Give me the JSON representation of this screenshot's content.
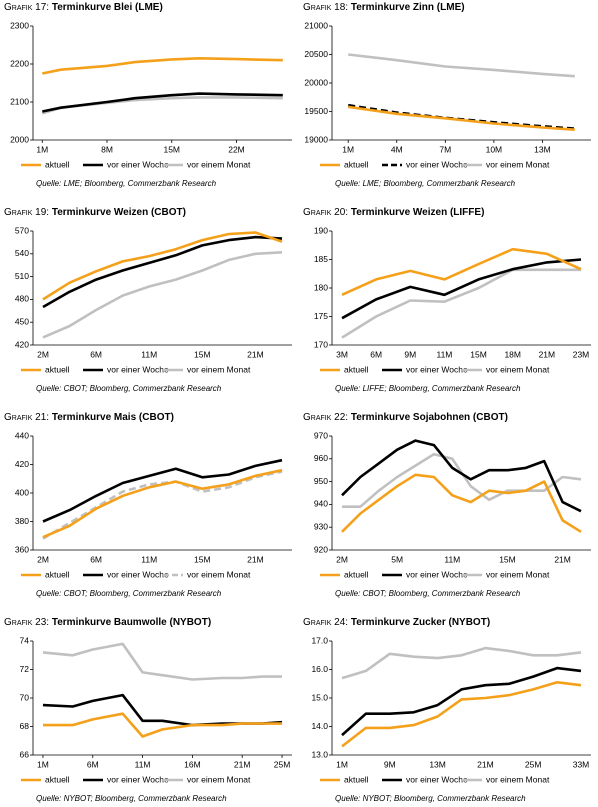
{
  "chart_data": [
    {
      "type": "line",
      "label": "Grafik 17:",
      "title": "Terminkurve Blei (LME)",
      "source": "Quelle: LME; Bloomberg, Commerzbank Research",
      "x": [
        1,
        3,
        8,
        11,
        15,
        18,
        22,
        27
      ],
      "xlim": [
        0,
        28
      ],
      "xticks": [
        {
          "value": 1,
          "label": "1M"
        },
        {
          "value": 8,
          "label": "8M"
        },
        {
          "value": 15,
          "label": "15M"
        },
        {
          "value": 22,
          "label": "22M"
        }
      ],
      "ylim": [
        2000,
        2300
      ],
      "yticks": [
        2000,
        2100,
        2200,
        2300
      ],
      "series": [
        {
          "name": "aktuell",
          "color": "#f5a01a",
          "values": [
            2175,
            2185,
            2195,
            2205,
            2212,
            2215,
            2213,
            2210
          ]
        },
        {
          "name": "vor einer Woche",
          "color": "#000000",
          "values": [
            2075,
            2085,
            2100,
            2110,
            2118,
            2122,
            2120,
            2118
          ]
        },
        {
          "name": "vor einem Monat",
          "color": "#c0c0c0",
          "values": [
            2070,
            2085,
            2098,
            2105,
            2110,
            2112,
            2112,
            2110
          ]
        }
      ]
    },
    {
      "type": "line",
      "label": "Grafik 18:",
      "title": "Terminkurve Zinn (LME)",
      "source": "Quelle: LME; Bloomberg, Commerzbank Research",
      "x": [
        1,
        4,
        7,
        10,
        13,
        15
      ],
      "xlim": [
        0,
        16
      ],
      "xticks": [
        {
          "value": 1,
          "label": "1M"
        },
        {
          "value": 4,
          "label": "4M"
        },
        {
          "value": 7,
          "label": "7M"
        },
        {
          "value": 10,
          "label": "10M"
        },
        {
          "value": 13,
          "label": "13M"
        }
      ],
      "ylim": [
        19000,
        21000
      ],
      "yticks": [
        19000,
        19500,
        20000,
        20500,
        21000
      ],
      "series": [
        {
          "name": "aktuell",
          "color": "#f5a01a",
          "values": [
            19580,
            19460,
            19380,
            19290,
            19220,
            19180
          ]
        },
        {
          "name": "vor einer Woche",
          "color": "#000000",
          "dash": true,
          "values": [
            19610,
            19480,
            19390,
            19310,
            19240,
            19200
          ]
        },
        {
          "name": "vor einem Monat",
          "color": "#c0c0c0",
          "values": [
            20500,
            20400,
            20290,
            20230,
            20160,
            20120
          ]
        }
      ]
    },
    {
      "type": "line",
      "label": "Grafik 19:",
      "title": "Terminkurve Weizen (CBOT)",
      "source": "Quelle: CBOT; Bloomberg, Commerzbank Research",
      "categories": [
        "2M",
        null,
        "6M",
        null,
        "11M",
        null,
        "15M",
        null,
        "21M",
        null
      ],
      "ylim": [
        420,
        570
      ],
      "yticks": [
        420,
        450,
        480,
        510,
        540,
        570
      ],
      "series": [
        {
          "name": "aktuell",
          "color": "#f5a01a",
          "values": [
            480,
            502,
            517,
            530,
            537,
            546,
            558,
            566,
            568,
            556
          ]
        },
        {
          "name": "vor einer Woche",
          "color": "#000000",
          "values": [
            470,
            490,
            506,
            518,
            528,
            538,
            551,
            558,
            562,
            560
          ]
        },
        {
          "name": "vor einem Monat",
          "color": "#c0c0c0",
          "values": [
            430,
            445,
            466,
            485,
            497,
            506,
            518,
            532,
            540,
            542
          ]
        }
      ]
    },
    {
      "type": "line",
      "label": "Grafik 20:",
      "title": "Terminkurve Weizen (LIFFE)",
      "source": "Quelle: LIFFE; Bloomberg, Commerzbank Research",
      "categories": [
        "3M",
        "6M",
        "9M",
        "11M",
        "15M",
        "18M",
        "21M",
        "23M"
      ],
      "ylim": [
        170,
        190
      ],
      "yticks": [
        170,
        175,
        180,
        185,
        190
      ],
      "series": [
        {
          "name": "aktuell",
          "color": "#f5a01a",
          "values": [
            178.8,
            181.5,
            183,
            181.5,
            184.2,
            186.8,
            186,
            183.3
          ]
        },
        {
          "name": "vor einer Woche",
          "color": "#000000",
          "values": [
            174.7,
            178,
            180.2,
            178.8,
            181.5,
            183.3,
            184.5,
            185
          ]
        },
        {
          "name": "vor einem Monat",
          "color": "#c0c0c0",
          "values": [
            171.3,
            175,
            177.8,
            177.6,
            180,
            183.2,
            183.2,
            183.2
          ]
        }
      ]
    },
    {
      "type": "line",
      "label": "Grafik 21:",
      "title": "Terminkurve Mais (CBOT)",
      "source": "Quelle: CBOT; Bloomberg, Commerzbank Research",
      "categories": [
        "2M",
        null,
        "6M",
        null,
        "11M",
        null,
        "15M",
        null,
        "21M",
        null
      ],
      "ylim": [
        360,
        440
      ],
      "yticks": [
        360,
        380,
        400,
        420,
        440
      ],
      "series": [
        {
          "name": "aktuell",
          "color": "#f5a01a",
          "values": [
            369,
            377,
            389,
            398,
            404,
            408,
            403,
            406,
            412,
            416
          ]
        },
        {
          "name": "vor einer Woche",
          "color": "#000000",
          "values": [
            380,
            388,
            398,
            407,
            412,
            417,
            411,
            413,
            419,
            423
          ]
        },
        {
          "name": "vor einem Monat",
          "color": "#c0c0c0",
          "dash": true,
          "values": [
            368,
            379,
            390,
            401,
            406,
            408,
            401,
            404,
            411,
            415
          ]
        }
      ]
    },
    {
      "type": "line",
      "label": "Grafik 22:",
      "title": "Terminkurve Sojabohnen (CBOT)",
      "source": "Quelle: CBOT; Bloomberg, Commerzbank Research",
      "categories": [
        "2M",
        null,
        null,
        "5M",
        null,
        null,
        "11M",
        null,
        null,
        "15M",
        null,
        null,
        "21M",
        null
      ],
      "ylim": [
        920,
        970
      ],
      "yticks": [
        920,
        930,
        940,
        950,
        960,
        970
      ],
      "series": [
        {
          "name": "aktuell",
          "color": "#f5a01a",
          "values": [
            928,
            936,
            942,
            948,
            953,
            952,
            944,
            941,
            946,
            945,
            946,
            950,
            933,
            928
          ]
        },
        {
          "name": "vor einer Woche",
          "color": "#000000",
          "values": [
            944,
            952,
            958,
            964,
            968,
            966,
            956,
            951,
            955,
            955,
            956,
            959,
            941,
            937
          ]
        },
        {
          "name": "vor einem Monat",
          "color": "#c0c0c0",
          "values": [
            939,
            939,
            946,
            952,
            957,
            962,
            960,
            948,
            942,
            946,
            946,
            946,
            952,
            951
          ]
        }
      ]
    },
    {
      "type": "line",
      "label": "Grafik 23:",
      "title": "Terminkurve Baumwolle (NYBOT)",
      "source": "Quelle: NYBOT; Bloomberg, Commerzbank Research",
      "x": [
        1,
        4,
        6,
        9,
        11,
        13,
        16,
        19,
        21,
        23,
        25
      ],
      "xlim": [
        0,
        26
      ],
      "xticks": [
        {
          "value": 1,
          "label": "1M"
        },
        {
          "value": 6,
          "label": "6M"
        },
        {
          "value": 11,
          "label": "11M"
        },
        {
          "value": 16,
          "label": "16M"
        },
        {
          "value": 21,
          "label": "21M"
        },
        {
          "value": 25,
          "label": "25M"
        }
      ],
      "ylim": [
        66,
        74
      ],
      "yticks": [
        66,
        68,
        70,
        72,
        74
      ],
      "series": [
        {
          "name": "aktuell",
          "color": "#f5a01a",
          "values": [
            68.1,
            68.1,
            68.5,
            68.9,
            67.3,
            67.8,
            68.1,
            68.1,
            68.2,
            68.2,
            68.2
          ]
        },
        {
          "name": "vor einer Woche",
          "color": "#000000",
          "values": [
            69.5,
            69.4,
            69.8,
            70.2,
            68.4,
            68.4,
            68.1,
            68.2,
            68.2,
            68.2,
            68.3
          ]
        },
        {
          "name": "vor einem Monat",
          "color": "#c0c0c0",
          "values": [
            73.2,
            73.0,
            73.4,
            73.8,
            71.8,
            71.6,
            71.3,
            71.4,
            71.4,
            71.5,
            71.5
          ]
        }
      ]
    },
    {
      "type": "line",
      "label": "Grafik 24:",
      "title": "Terminkurve Zucker (NYBOT)",
      "source": "Quelle: NYBOT; Bloomberg, Commerzbank Research",
      "categories": [
        "1M",
        null,
        "9M",
        null,
        "13M",
        null,
        "21M",
        null,
        "25M",
        null,
        "33M"
      ],
      "ylim": [
        13,
        17
      ],
      "yticks": [
        {
          "value": 13,
          "label": "13.0"
        },
        {
          "value": 14,
          "label": "14.0"
        },
        {
          "value": 15,
          "label": "15.0"
        },
        {
          "value": 16,
          "label": "16.0"
        },
        {
          "value": 17,
          "label": "17.0"
        }
      ],
      "series": [
        {
          "name": "aktuell",
          "color": "#f5a01a",
          "values": [
            13.3,
            13.95,
            13.95,
            14.05,
            14.35,
            14.95,
            15.0,
            15.1,
            15.3,
            15.55,
            15.45
          ]
        },
        {
          "name": "vor einer Woche",
          "color": "#000000",
          "values": [
            13.7,
            14.45,
            14.45,
            14.5,
            14.75,
            15.3,
            15.45,
            15.5,
            15.75,
            16.05,
            15.95
          ]
        },
        {
          "name": "vor einem Monat",
          "color": "#c0c0c0",
          "values": [
            15.7,
            15.95,
            16.55,
            16.45,
            16.4,
            16.5,
            16.75,
            16.65,
            16.5,
            16.5,
            16.6
          ]
        }
      ]
    }
  ]
}
